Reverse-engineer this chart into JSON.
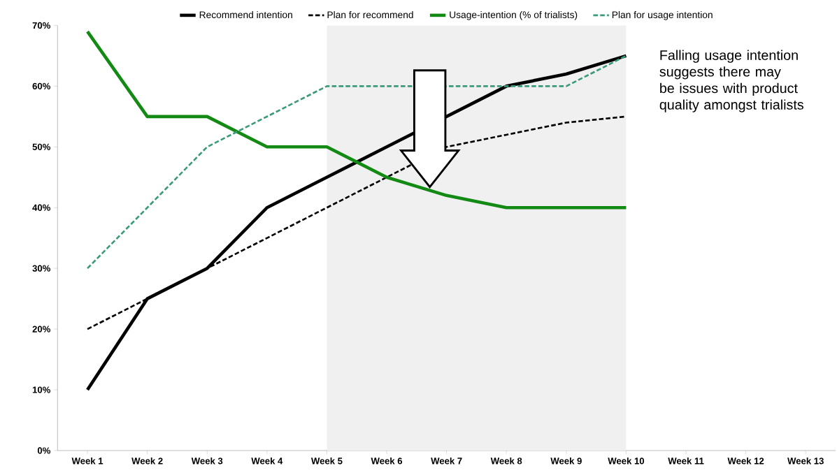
{
  "chart_data": {
    "type": "line",
    "categories": [
      "Week 1",
      "Week 2",
      "Week 3",
      "Week 4",
      "Week 5",
      "Week 6",
      "Week 7",
      "Week 8",
      "Week 9",
      "Week 10",
      "Week 11",
      "Week 12",
      "Week 13"
    ],
    "series": [
      {
        "name": "Recommend intention",
        "color": "#000000",
        "line_style": "solid",
        "values": [
          10,
          25,
          30,
          40,
          45,
          50,
          55,
          60,
          62,
          65,
          null,
          null,
          null
        ]
      },
      {
        "name": "Plan for recommend",
        "color": "#000000",
        "line_style": "dashed",
        "values": [
          20,
          25,
          30,
          35,
          40,
          45,
          50,
          52,
          54,
          55,
          null,
          null,
          null
        ]
      },
      {
        "name": "Usage-intention (% of trialists)",
        "color": "#138a13",
        "line_style": "solid",
        "values": [
          69,
          55,
          55,
          50,
          50,
          45,
          42,
          40,
          40,
          40,
          null,
          null,
          null
        ]
      },
      {
        "name": "Plan for usage intention",
        "color": "#3a9a7a",
        "line_style": "dashed",
        "values": [
          30,
          40,
          50,
          55,
          60,
          60,
          60,
          60,
          60,
          65,
          null,
          null,
          null
        ]
      }
    ],
    "ylim": [
      0,
      70
    ],
    "yticks": [
      {
        "value": 0,
        "label": "0%"
      },
      {
        "value": 10,
        "label": "10%"
      },
      {
        "value": 20,
        "label": "20%"
      },
      {
        "value": 30,
        "label": "30%"
      },
      {
        "value": 40,
        "label": "40%"
      },
      {
        "value": 50,
        "label": "50%"
      },
      {
        "value": 60,
        "label": "60%"
      },
      {
        "value": 70,
        "label": "70%"
      }
    ],
    "bands": [
      {
        "axis": "x",
        "from": "Week 5",
        "to": "Week 10",
        "color": "#f0f0f0"
      }
    ],
    "annotations": [
      "Falling usage intention suggests there may be issues with product quality amongst trialists"
    ],
    "legend": "top",
    "grid": false,
    "marker": "none"
  }
}
